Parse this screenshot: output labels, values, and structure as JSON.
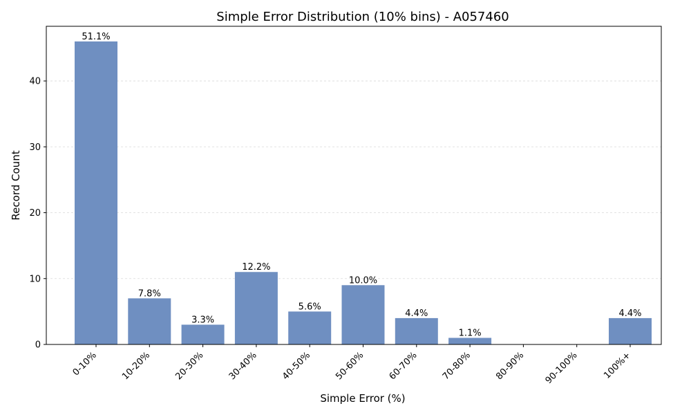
{
  "chart_data": {
    "type": "bar",
    "title": "Simple Error Distribution (10% bins) - A057460",
    "xlabel": "Simple Error (%)",
    "ylabel": "Record Count",
    "categories": [
      "0-10%",
      "10-20%",
      "20-30%",
      "30-40%",
      "40-50%",
      "50-60%",
      "60-70%",
      "70-80%",
      "80-90%",
      "90-100%",
      "100%+"
    ],
    "values": [
      46,
      7,
      3,
      11,
      5,
      9,
      4,
      1,
      0,
      0,
      4
    ],
    "data_labels": [
      "51.1%",
      "7.8%",
      "3.3%",
      "12.2%",
      "5.6%",
      "10.0%",
      "4.4%",
      "1.1%",
      "",
      "",
      "4.4%"
    ],
    "yticks": [
      0,
      10,
      20,
      30,
      40
    ],
    "ylim": [
      0,
      48.3
    ],
    "grid": "horizontal dashed",
    "bar_color": "#6f8fc1"
  }
}
